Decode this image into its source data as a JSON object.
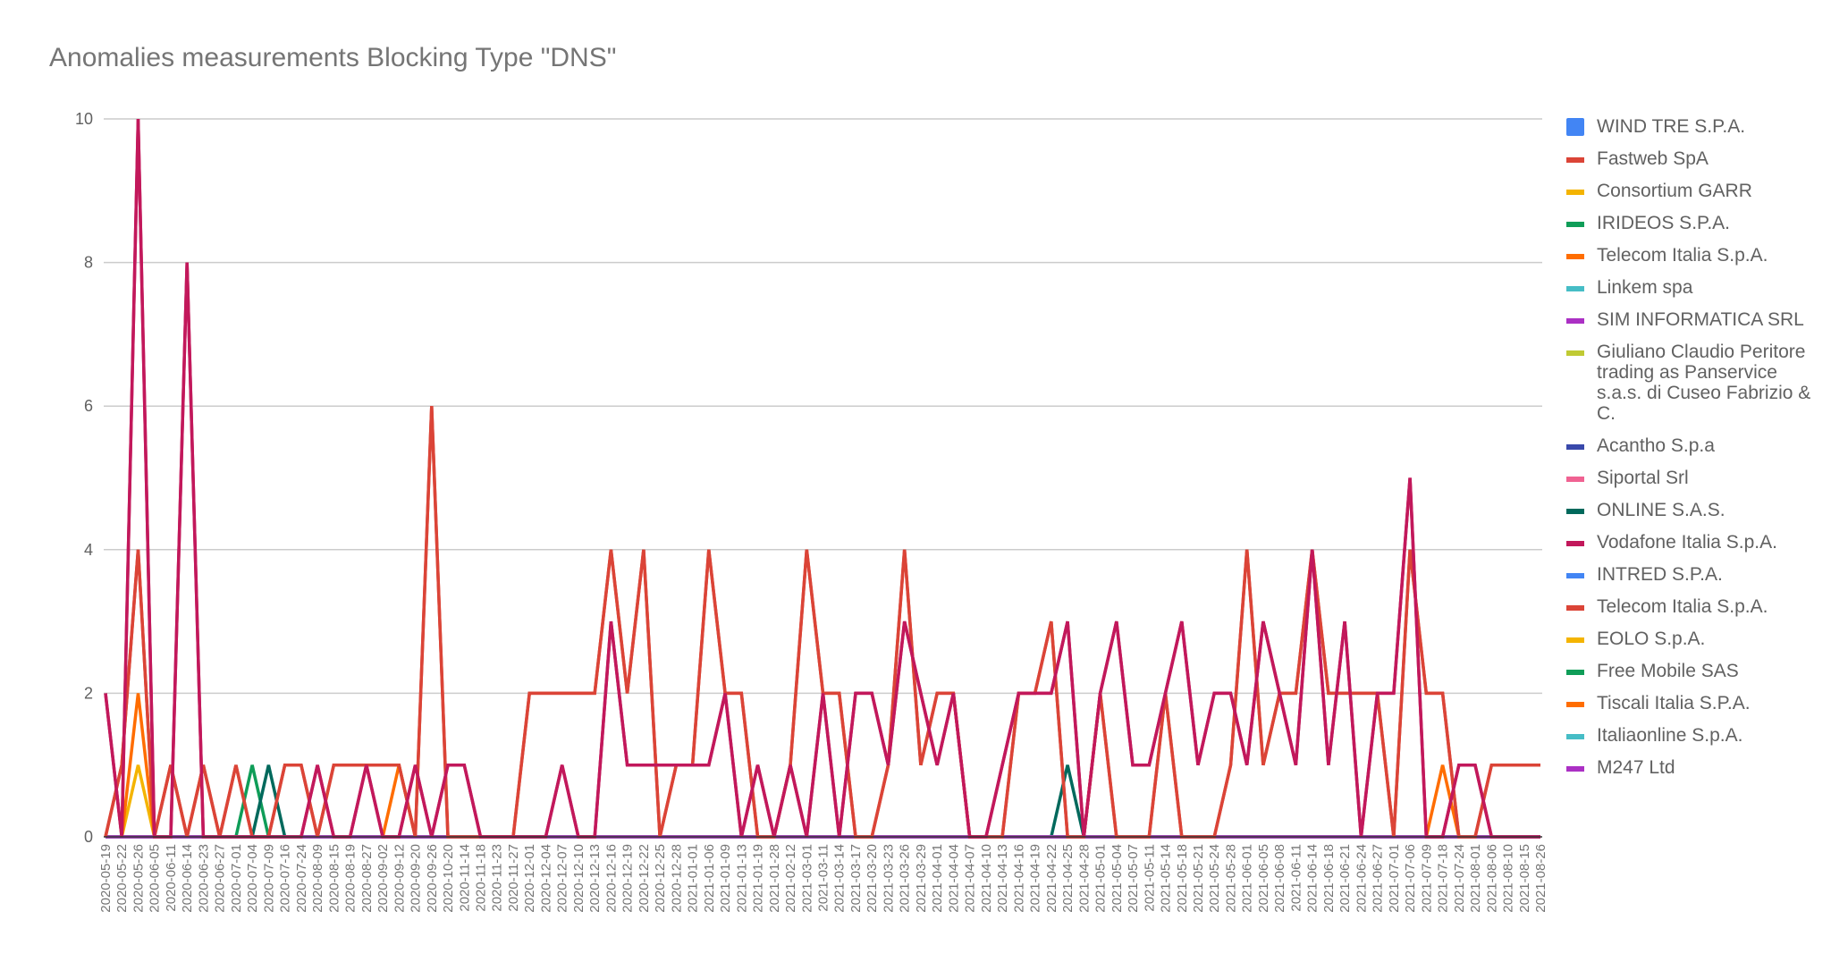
{
  "chart_data": {
    "type": "line",
    "title": "Anomalies measurements Blocking Type \"DNS\"",
    "xlabel": "",
    "ylabel": "",
    "ylim": [
      0,
      10
    ],
    "yticks": [
      0,
      2,
      4,
      6,
      8,
      10
    ],
    "grid": true,
    "legend_position": "right",
    "categories": [
      "2020-05-19",
      "2020-05-22",
      "2020-05-26",
      "2020-06-05",
      "2020-06-11",
      "2020-06-14",
      "2020-06-23",
      "2020-06-27",
      "2020-07-01",
      "2020-07-04",
      "2020-07-09",
      "2020-07-16",
      "2020-07-24",
      "2020-08-09",
      "2020-08-15",
      "2020-08-19",
      "2020-08-27",
      "2020-09-02",
      "2020-09-12",
      "2020-09-20",
      "2020-09-26",
      "2020-10-20",
      "2020-11-14",
      "2020-11-18",
      "2020-11-23",
      "2020-11-27",
      "2020-12-01",
      "2020-12-04",
      "2020-12-07",
      "2020-12-10",
      "2020-12-13",
      "2020-12-16",
      "2020-12-19",
      "2020-12-22",
      "2020-12-25",
      "2020-12-28",
      "2021-01-01",
      "2021-01-06",
      "2021-01-09",
      "2021-01-13",
      "2021-01-19",
      "2021-01-28",
      "2021-02-12",
      "2021-03-01",
      "2021-03-11",
      "2021-03-14",
      "2021-03-17",
      "2021-03-20",
      "2021-03-23",
      "2021-03-26",
      "2021-03-29",
      "2021-04-01",
      "2021-04-04",
      "2021-04-07",
      "2021-04-10",
      "2021-04-13",
      "2021-04-16",
      "2021-04-19",
      "2021-04-22",
      "2021-04-25",
      "2021-04-28",
      "2021-05-01",
      "2021-05-04",
      "2021-05-07",
      "2021-05-11",
      "2021-05-14",
      "2021-05-18",
      "2021-05-21",
      "2021-05-24",
      "2021-05-28",
      "2021-06-01",
      "2021-06-05",
      "2021-06-08",
      "2021-06-11",
      "2021-06-14",
      "2021-06-18",
      "2021-06-21",
      "2021-06-24",
      "2021-06-27",
      "2021-07-01",
      "2021-07-06",
      "2021-07-09",
      "2021-07-18",
      "2021-07-24",
      "2021-08-01",
      "2021-08-06",
      "2021-08-10",
      "2021-08-15",
      "2021-08-26"
    ],
    "series": [
      {
        "name": "WIND TRE S.P.A.",
        "color": "#4285f4",
        "marker": "square",
        "points": []
      },
      {
        "name": "Fastweb SpA",
        "color": "#db4437",
        "points": []
      },
      {
        "name": "Consortium GARR",
        "color": "#f4b400",
        "points": [
          [
            "2020-05-26",
            1
          ]
        ]
      },
      {
        "name": "IRIDEOS S.P.A.",
        "color": "#0f9d58",
        "points": [
          [
            "2020-07-04",
            1
          ]
        ]
      },
      {
        "name": "Telecom Italia S.p.A.",
        "color": "#ff6d00",
        "points": [
          [
            "2020-05-26",
            2
          ],
          [
            "2020-09-12",
            1
          ],
          [
            "2021-07-18",
            1
          ]
        ]
      },
      {
        "name": "Linkem spa",
        "color": "#46bdc6",
        "points": []
      },
      {
        "name": "SIM INFORMATICA SRL",
        "color": "#ab30c4",
        "points": []
      },
      {
        "name": "Giuliano Claudio Peritore trading as Panservice s.a.s. di Cuseo Fabrizio & C.",
        "color": "#c0ca33",
        "points": []
      },
      {
        "name": "Acantho S.p.a",
        "color": "#3949ab",
        "points": []
      },
      {
        "name": "Siportal Srl",
        "color": "#f06292",
        "points": []
      },
      {
        "name": "ONLINE S.A.S.",
        "color": "#00695c",
        "points": [
          [
            "2020-07-09",
            1
          ],
          [
            "2021-04-25",
            1
          ]
        ]
      },
      {
        "name": "Vodafone Italia S.p.A.",
        "color": "#c2185b",
        "values": [
          2,
          0,
          10,
          0,
          0,
          8,
          0,
          0,
          0,
          0,
          0,
          0,
          0,
          1,
          0,
          0,
          1,
          0,
          0,
          1,
          0,
          1,
          1,
          0,
          0,
          0,
          0,
          0,
          1,
          0,
          0,
          3,
          1,
          1,
          1,
          1,
          1,
          1,
          2,
          0,
          1,
          0,
          1,
          0,
          2,
          0,
          2,
          2,
          1,
          3,
          2,
          1,
          2,
          0,
          0,
          1,
          2,
          2,
          2,
          3,
          0,
          2,
          3,
          1,
          1,
          2,
          3,
          1,
          2,
          2,
          1,
          3,
          2,
          1,
          4,
          1,
          3,
          0,
          2,
          2,
          5,
          0,
          0,
          1,
          1,
          0,
          0,
          0,
          0
        ]
      },
      {
        "name": "INTRED S.P.A.",
        "color": "#4285f4",
        "points": []
      },
      {
        "name": "Telecom Italia S.p.A.",
        "color": "#db4437",
        "values": [
          0,
          1,
          4,
          0,
          1,
          0,
          1,
          0,
          1,
          0,
          0,
          1,
          1,
          0,
          1,
          1,
          1,
          1,
          1,
          0,
          6,
          0,
          0,
          0,
          0,
          0,
          2,
          2,
          2,
          2,
          2,
          4,
          2,
          4,
          0,
          1,
          1,
          4,
          2,
          2,
          0,
          0,
          1,
          4,
          2,
          2,
          0,
          0,
          1,
          4,
          1,
          2,
          2,
          0,
          0,
          0,
          2,
          2,
          3,
          0,
          0,
          2,
          0,
          0,
          0,
          2,
          0,
          0,
          0,
          1,
          4,
          1,
          2,
          2,
          4,
          2,
          2,
          2,
          2,
          0,
          4,
          2,
          2,
          0,
          0,
          1,
          1,
          1,
          1
        ]
      },
      {
        "name": "EOLO S.p.A.",
        "color": "#f4b400",
        "points": []
      },
      {
        "name": "Free Mobile SAS",
        "color": "#0f9d58",
        "points": []
      },
      {
        "name": "Tiscali Italia S.P.A.",
        "color": "#ff6d00",
        "points": []
      },
      {
        "name": "Italiaonline S.p.A.",
        "color": "#46bdc6",
        "points": []
      },
      {
        "name": "M247 Ltd",
        "color": "#ab30c4",
        "points": []
      }
    ]
  }
}
